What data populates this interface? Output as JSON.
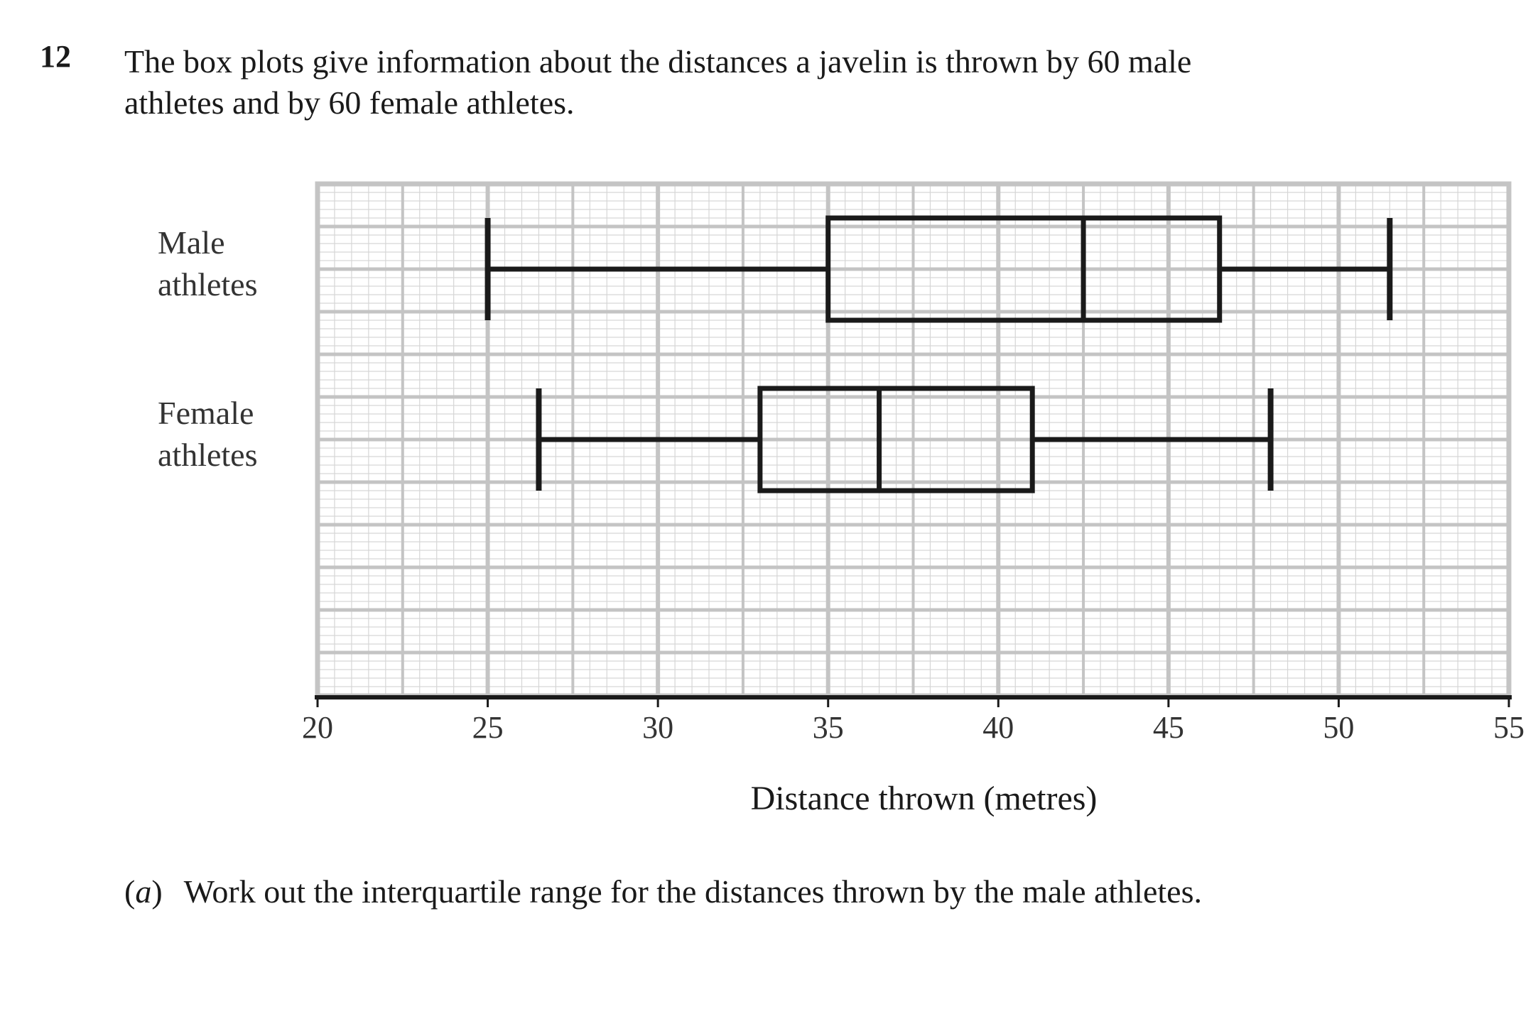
{
  "question": {
    "number": "12",
    "intro_line1": "The box plots give information about the distances a javelin is thrown by 60 male",
    "intro_line2": "athletes and by 60 female athletes."
  },
  "chart_data": {
    "type": "boxplot",
    "orientation": "horizontal",
    "xlabel": "Distance thrown (metres)",
    "xlim": [
      20,
      55
    ],
    "xticks": [
      20,
      25,
      30,
      35,
      40,
      45,
      50,
      55
    ],
    "grid": true,
    "series": [
      {
        "name_line1": "Male",
        "name_line2": "athletes",
        "min": 25,
        "q1": 35,
        "median": 42.5,
        "q3": 46.5,
        "max": 51.5
      },
      {
        "name_line1": "Female",
        "name_line2": "athletes",
        "min": 26.5,
        "q1": 33,
        "median": 36.5,
        "q3": 41,
        "max": 48
      }
    ]
  },
  "part_a": {
    "letter": "a",
    "text": "Work out the interquartile range for the distances thrown by the male athletes."
  }
}
